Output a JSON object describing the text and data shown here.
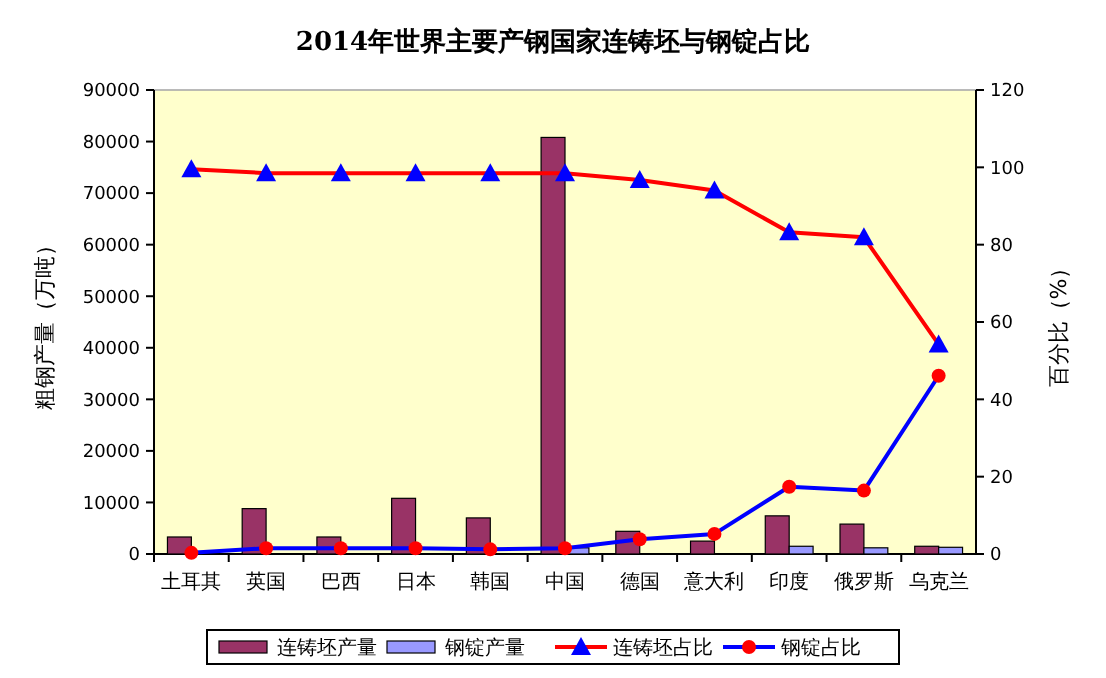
{
  "chart_data": {
    "type": "bar",
    "title": "2014年世界主要产钢国家连铸坯与钢锭占比",
    "ylabel": "粗钢产量（万吨）",
    "y2label": "百分比（%）",
    "categories": [
      "土耳其",
      "英国",
      "巴西",
      "日本",
      "韩国",
      "中国",
      "德国",
      "意大利",
      "印度",
      "俄罗斯",
      "乌克兰"
    ],
    "series": [
      {
        "name": "连铸坯产量",
        "color": "#993366",
        "values": [
          3300,
          8800,
          3300,
          10800,
          7000,
          80800,
          4400,
          2500,
          7400,
          5800,
          1500
        ]
      },
      {
        "name": "钢锭产量",
        "color": "#9999ff",
        "values": [
          100,
          null,
          null,
          null,
          null,
          1200,
          null,
          null,
          1500,
          1200,
          1300
        ]
      },
      {
        "name": "连铸坯占比",
        "type": "line",
        "axis": "y2",
        "marker": "triangle",
        "color": "#ff0000",
        "values": [
          99.5,
          98.5,
          98.5,
          98.5,
          98.5,
          98.5,
          96.7,
          94,
          83.2,
          81.9,
          54.2
        ]
      },
      {
        "name": "钢锭占比",
        "type": "line",
        "axis": "y2",
        "marker": "circle",
        "color": "#0000ff",
        "values": [
          0.3,
          1.5,
          1.5,
          1.5,
          1.2,
          1.5,
          3.8,
          5.2,
          17.4,
          16.4,
          46.1
        ]
      }
    ],
    "ylim": [
      0,
      90000
    ],
    "yticks": [
      0,
      10000,
      20000,
      30000,
      40000,
      50000,
      60000,
      70000,
      80000,
      90000
    ],
    "y2lim": [
      0,
      120
    ],
    "y2ticks": [
      0,
      20,
      40,
      60,
      80,
      100,
      120
    ],
    "grid": false,
    "legend": "bottom"
  }
}
